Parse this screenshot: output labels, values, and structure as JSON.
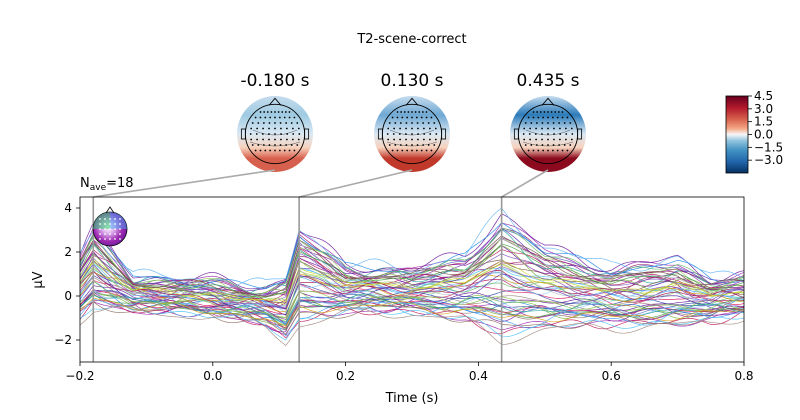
{
  "title": "T2-scene-correct",
  "n_ave": {
    "prefix": "N",
    "sub": "ave",
    "suffix": "=18"
  },
  "topomaps": [
    {
      "label": "-0.180 s",
      "time": -0.18,
      "pattern": "front_blue_back_red_weak"
    },
    {
      "label": "0.130 s",
      "time": 0.13,
      "pattern": "front_blue_back_red"
    },
    {
      "label": "0.435 s",
      "time": 0.435,
      "pattern": "front_blue_back_red_strong"
    }
  ],
  "colorbar": {
    "range": [
      -4.5,
      4.5
    ],
    "ticks": [
      "4.5",
      "3.0",
      "1.5",
      "0.0",
      "−1.5",
      "−3.0"
    ],
    "tick_values": [
      4.5,
      3.0,
      1.5,
      0.0,
      -1.5,
      -3.0
    ],
    "colormap": "RdBu_r"
  },
  "chart_data": {
    "type": "line",
    "xlabel": "Time (s)",
    "ylabel": "µV",
    "xlim": [
      -0.2,
      0.8
    ],
    "ylim": [
      -3,
      4.5
    ],
    "xticks": [
      -0.2,
      0.0,
      0.2,
      0.4,
      0.6,
      0.8
    ],
    "xtick_labels": [
      "−0.2",
      "0.0",
      "0.2",
      "0.4",
      "0.6",
      "0.8"
    ],
    "yticks": [
      -2,
      0,
      2,
      4
    ],
    "ytick_labels": [
      "−2",
      "0",
      "2",
      "4"
    ],
    "time_markers": [
      -0.18,
      0.13,
      0.435
    ],
    "n_channels": 60,
    "channel_colors": [
      "#8b1a5c",
      "#a0206e",
      "#c2185b",
      "#7b1fa2",
      "#9c27b0",
      "#6a1b9a",
      "#8e24aa",
      "#ad1457",
      "#d81b60",
      "#5e35b1",
      "#7e57c2",
      "#3949ab",
      "#5c6bc0",
      "#1e88e5",
      "#42a5f5",
      "#64b5f6",
      "#90caf9",
      "#4fc3f7",
      "#26a69a",
      "#66bb6a",
      "#9ccc65",
      "#7cb342",
      "#43a047",
      "#8bc34a",
      "#cddc39",
      "#b0bec5",
      "#795548",
      "#8d6e63",
      "#a1887f",
      "#d4a017"
    ],
    "envelope_keypoints": {
      "t": [
        -0.2,
        -0.18,
        -0.12,
        0.0,
        0.08,
        0.11,
        0.13,
        0.2,
        0.3,
        0.38,
        0.435,
        0.5,
        0.6,
        0.7,
        0.75,
        0.8
      ],
      "max": [
        2.0,
        3.2,
        1.0,
        0.8,
        0.5,
        1.0,
        3.3,
        1.5,
        1.3,
        2.0,
        4.0,
        2.4,
        1.4,
        1.8,
        1.0,
        1.0
      ],
      "min": [
        -1.3,
        -0.8,
        -0.9,
        -1.0,
        -1.5,
        -2.3,
        -1.6,
        -1.0,
        -0.9,
        -1.4,
        -2.4,
        -1.8,
        -1.6,
        -1.6,
        -1.4,
        -1.0
      ]
    }
  }
}
